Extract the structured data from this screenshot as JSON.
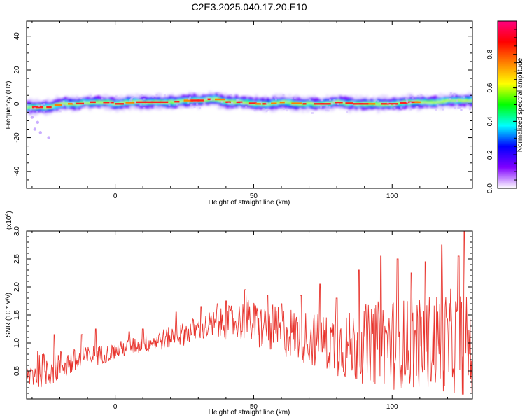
{
  "figure": {
    "title": "C2E3.2025.040.17.20.E10"
  },
  "chart_data": [
    {
      "type": "heatmap",
      "xlabel": "Height of straight line (km)",
      "ylabel": "Frequency (Hz)",
      "xlim": [
        -32,
        129
      ],
      "ylim": [
        -50,
        49
      ],
      "xticks": [
        0,
        50,
        100
      ],
      "xtick_labels": [
        "0",
        "50",
        "100"
      ],
      "yticks": [
        -40,
        -20,
        0,
        20,
        40
      ],
      "ytick_labels": [
        "-40",
        "-20",
        "0",
        "20",
        "40"
      ],
      "colorbar": {
        "label": "Normalized spectral amplitude",
        "range": [
          0,
          1
        ],
        "ticks": [
          0.0,
          0.2,
          0.4,
          0.6,
          0.8
        ],
        "tick_labels": [
          "0.0",
          "0.2",
          "0.4",
          "0.6",
          "0.8"
        ],
        "colormap": [
          "#ffffff",
          "#8000ff",
          "#0000ff",
          "#00ffff",
          "#00ff00",
          "#ffff00",
          "#ff8000",
          "#ff0000",
          "#ff0080"
        ]
      },
      "ridge": {
        "x": [
          -32,
          -25,
          -20,
          -15,
          -10,
          -5,
          0,
          5,
          10,
          15,
          20,
          25,
          30,
          35,
          40,
          45,
          50,
          55,
          60,
          65,
          70,
          75,
          80,
          85,
          90,
          95,
          100,
          105,
          110,
          115,
          120,
          125,
          129
        ],
        "y": [
          -2,
          -2,
          0,
          0,
          1,
          1,
          0,
          1,
          1,
          1,
          1,
          2,
          2,
          3,
          1,
          1,
          0,
          0,
          1,
          0,
          0,
          0,
          1,
          0,
          0,
          0,
          0,
          1,
          1,
          1,
          2,
          2,
          2
        ]
      },
      "grid": false
    },
    {
      "type": "line",
      "xlabel": "Height of straight line (km)",
      "ylabel": "SNR (10 * v/v)",
      "scale_note": "(x10",
      "scale_exponent": "4",
      "scale_close": ")",
      "xlim": [
        -32,
        129
      ],
      "ylim": [
        0,
        3.0
      ],
      "xticks": [
        0,
        50,
        100
      ],
      "xtick_labels": [
        "0",
        "50",
        "100"
      ],
      "yticks": [
        0.5,
        1.0,
        1.5,
        2.0,
        2.5,
        3.0
      ],
      "ytick_labels": [
        "0.5",
        "1.0",
        "1.5",
        "2.0",
        "2.5",
        "3.0"
      ],
      "series": [
        {
          "color": "#e8352e",
          "x": [
            -32,
            -28,
            -24,
            -20,
            -16,
            -12,
            -8,
            -4,
            0,
            4,
            8,
            12,
            16,
            20,
            24,
            28,
            32,
            36,
            40,
            44,
            48,
            52,
            56,
            60,
            64,
            68,
            72,
            76,
            80,
            84,
            88,
            92,
            96,
            100,
            104,
            108,
            112,
            116,
            120,
            124,
            129
          ],
          "mean": [
            0.4,
            0.5,
            0.55,
            0.6,
            0.65,
            0.7,
            0.78,
            0.8,
            0.85,
            0.92,
            0.95,
            1.0,
            1.05,
            1.1,
            1.15,
            1.22,
            1.28,
            1.32,
            1.35,
            1.38,
            1.4,
            1.3,
            1.25,
            1.2,
            1.18,
            1.12,
            1.05,
            1.0,
            1.0,
            0.95,
            0.95,
            1.0,
            1.0,
            1.0,
            1.0,
            0.95,
            1.0,
            1.05,
            1.0,
            1.0,
            0.95
          ],
          "spread": [
            0.3,
            0.35,
            0.38,
            0.35,
            0.3,
            0.25,
            0.22,
            0.2,
            0.18,
            0.18,
            0.18,
            0.2,
            0.22,
            0.22,
            0.24,
            0.26,
            0.28,
            0.32,
            0.35,
            0.4,
            0.45,
            0.48,
            0.5,
            0.55,
            0.55,
            0.58,
            0.6,
            0.62,
            0.7,
            0.75,
            0.8,
            0.85,
            0.9,
            0.95,
            0.95,
            0.95,
            1.0,
            1.05,
            1.1,
            1.1,
            1.1
          ],
          "peaks": [
            [
              -28,
              0.85
            ],
            [
              -22,
              1.15
            ],
            [
              -12,
              1.15
            ],
            [
              -7,
              1.25
            ],
            [
              5,
              1.2
            ],
            [
              10,
              1.25
            ],
            [
              22,
              1.55
            ],
            [
              31,
              1.65
            ],
            [
              37,
              1.7
            ],
            [
              40,
              1.75
            ],
            [
              47,
              1.95
            ],
            [
              55,
              1.85
            ],
            [
              60,
              1.7
            ],
            [
              67,
              1.85
            ],
            [
              74,
              2.05
            ],
            [
              80,
              1.8
            ],
            [
              88,
              2.3
            ],
            [
              96,
              2.55
            ],
            [
              102,
              2.5
            ],
            [
              107,
              2.25
            ],
            [
              112,
              2.45
            ],
            [
              118,
              2.75
            ],
            [
              124,
              2.55
            ],
            [
              126,
              3.0
            ]
          ]
        }
      ],
      "grid": false
    }
  ]
}
